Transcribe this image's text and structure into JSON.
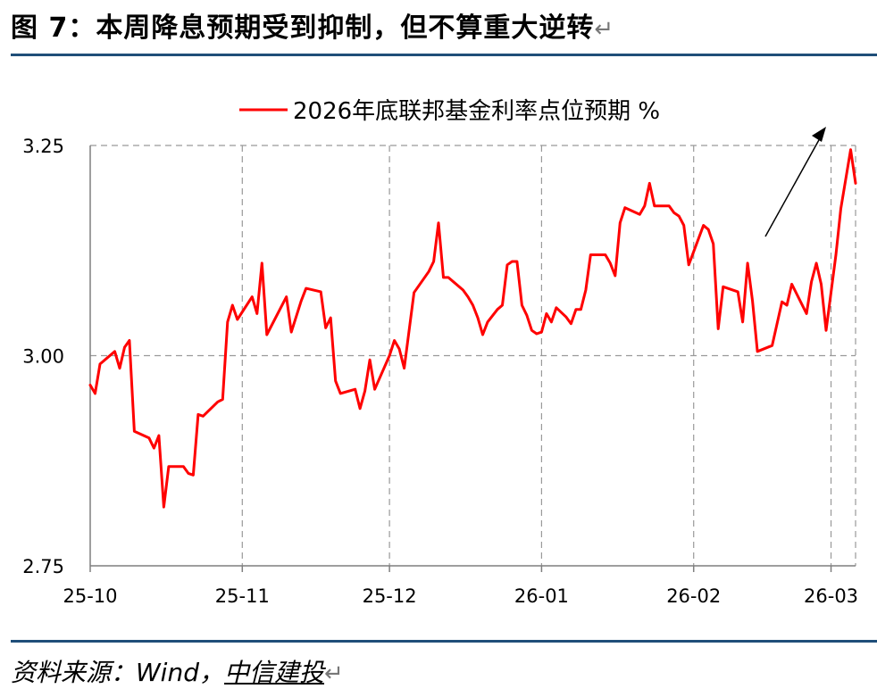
{
  "header": {
    "title": "图 7：本周降息预期受到抑制，但不算重大逆转",
    "title_return_mark": "↵"
  },
  "footer": {
    "source_prefix": "资料来源：Wind，",
    "source_brand": "中信建投",
    "source_return_mark": "↵"
  },
  "colors": {
    "series": "#ff0000",
    "rule": "#1f4e79",
    "grid": "#999999",
    "arrow": "#000000"
  },
  "chart_data": {
    "type": "line",
    "title": "",
    "xlabel": "",
    "ylabel": "",
    "grid": true,
    "legend_position": "top",
    "ylim": [
      2.75,
      3.25
    ],
    "yticks": [
      2.75,
      3.0,
      3.25
    ],
    "ytick_labels": [
      "2.75",
      "3.00",
      "3.25"
    ],
    "xlim": [
      "2025-10-01",
      "2026-03-06"
    ],
    "xticks": [
      "2025-10-01",
      "2025-11-01",
      "2025-12-01",
      "2026-01-01",
      "2026-02-01",
      "2026-03-01"
    ],
    "xtick_labels": [
      "25-10",
      "25-11",
      "25-12",
      "26-01",
      "26-02",
      "26-03"
    ],
    "annotation": "arrow-upward",
    "series": [
      {
        "name": "2026年底联邦基金利率点位预期 %",
        "color": "#ff0000",
        "points": [
          [
            "2025-10-01",
            2.965
          ],
          [
            "2025-10-02",
            2.955
          ],
          [
            "2025-10-03",
            2.99
          ],
          [
            "2025-10-06",
            3.005
          ],
          [
            "2025-10-07",
            2.985
          ],
          [
            "2025-10-08",
            3.01
          ],
          [
            "2025-10-09",
            3.018
          ],
          [
            "2025-10-10",
            2.91
          ],
          [
            "2025-10-13",
            2.902
          ],
          [
            "2025-10-14",
            2.89
          ],
          [
            "2025-10-15",
            2.905
          ],
          [
            "2025-10-16",
            2.82
          ],
          [
            "2025-10-17",
            2.868
          ],
          [
            "2025-10-20",
            2.868
          ],
          [
            "2025-10-21",
            2.86
          ],
          [
            "2025-10-22",
            2.858
          ],
          [
            "2025-10-23",
            2.93
          ],
          [
            "2025-10-24",
            2.928
          ],
          [
            "2025-10-27",
            2.945
          ],
          [
            "2025-10-28",
            2.948
          ],
          [
            "2025-10-29",
            3.04
          ],
          [
            "2025-10-30",
            3.06
          ],
          [
            "2025-10-31",
            3.043
          ],
          [
            "2025-11-03",
            3.07
          ],
          [
            "2025-11-04",
            3.05
          ],
          [
            "2025-11-05",
            3.11
          ],
          [
            "2025-11-06",
            3.025
          ],
          [
            "2025-11-10",
            3.07
          ],
          [
            "2025-11-11",
            3.028
          ],
          [
            "2025-11-13",
            3.065
          ],
          [
            "2025-11-14",
            3.08
          ],
          [
            "2025-11-17",
            3.076
          ],
          [
            "2025-11-18",
            3.033
          ],
          [
            "2025-11-19",
            3.045
          ],
          [
            "2025-11-20",
            2.97
          ],
          [
            "2025-11-21",
            2.955
          ],
          [
            "2025-11-24",
            2.96
          ],
          [
            "2025-11-25",
            2.937
          ],
          [
            "2025-11-26",
            2.958
          ],
          [
            "2025-11-27",
            2.995
          ],
          [
            "2025-11-28",
            2.96
          ],
          [
            "2025-12-01",
            3.0
          ],
          [
            "2025-12-02",
            3.018
          ],
          [
            "2025-12-03",
            3.008
          ],
          [
            "2025-12-04",
            2.985
          ],
          [
            "2025-12-05",
            3.03
          ],
          [
            "2025-12-06",
            3.075
          ],
          [
            "2025-12-09",
            3.1
          ],
          [
            "2025-12-10",
            3.112
          ],
          [
            "2025-12-11",
            3.158
          ],
          [
            "2025-12-12",
            3.093
          ],
          [
            "2025-12-13",
            3.093
          ],
          [
            "2025-12-16",
            3.078
          ],
          [
            "2025-12-17",
            3.07
          ],
          [
            "2025-12-18",
            3.06
          ],
          [
            "2025-12-19",
            3.045
          ],
          [
            "2025-12-20",
            3.025
          ],
          [
            "2025-12-21",
            3.04
          ],
          [
            "2025-12-23",
            3.055
          ],
          [
            "2025-12-24",
            3.06
          ],
          [
            "2025-12-25",
            3.108
          ],
          [
            "2025-12-26",
            3.112
          ],
          [
            "2025-12-27",
            3.112
          ],
          [
            "2025-12-28",
            3.06
          ],
          [
            "2025-12-29",
            3.048
          ],
          [
            "2025-12-30",
            3.03
          ],
          [
            "2025-12-31",
            3.026
          ],
          [
            "2026-01-01",
            3.028
          ],
          [
            "2026-01-02",
            3.05
          ],
          [
            "2026-01-03",
            3.04
          ],
          [
            "2026-01-04",
            3.057
          ],
          [
            "2026-01-06",
            3.046
          ],
          [
            "2026-01-07",
            3.038
          ],
          [
            "2026-01-08",
            3.055
          ],
          [
            "2026-01-09",
            3.055
          ],
          [
            "2026-01-10",
            3.078
          ],
          [
            "2026-01-11",
            3.12
          ],
          [
            "2026-01-14",
            3.12
          ],
          [
            "2026-01-15",
            3.11
          ],
          [
            "2026-01-16",
            3.095
          ],
          [
            "2026-01-17",
            3.158
          ],
          [
            "2026-01-18",
            3.176
          ],
          [
            "2026-01-21",
            3.168
          ],
          [
            "2026-01-22",
            3.178
          ],
          [
            "2026-01-23",
            3.205
          ],
          [
            "2026-01-24",
            3.178
          ],
          [
            "2026-01-27",
            3.178
          ],
          [
            "2026-01-28",
            3.17
          ],
          [
            "2026-01-29",
            3.166
          ],
          [
            "2026-01-30",
            3.155
          ],
          [
            "2026-01-31",
            3.108
          ],
          [
            "2026-02-03",
            3.155
          ],
          [
            "2026-02-04",
            3.15
          ],
          [
            "2026-02-05",
            3.133
          ],
          [
            "2026-02-06",
            3.032
          ],
          [
            "2026-02-07",
            3.082
          ],
          [
            "2026-02-10",
            3.076
          ],
          [
            "2026-02-11",
            3.04
          ],
          [
            "2026-02-12",
            3.11
          ],
          [
            "2026-02-13",
            3.065
          ],
          [
            "2026-02-14",
            3.005
          ],
          [
            "2026-02-17",
            3.012
          ],
          [
            "2026-02-18",
            3.038
          ],
          [
            "2026-02-19",
            3.064
          ],
          [
            "2026-02-20",
            3.06
          ],
          [
            "2026-02-21",
            3.085
          ],
          [
            "2026-02-24",
            3.05
          ],
          [
            "2026-02-25",
            3.088
          ],
          [
            "2026-02-26",
            3.11
          ],
          [
            "2026-02-27",
            3.085
          ],
          [
            "2026-02-28",
            3.03
          ],
          [
            "2026-03-02",
            3.12
          ],
          [
            "2026-03-03",
            3.175
          ],
          [
            "2026-03-04",
            3.21
          ],
          [
            "2026-03-05",
            3.245
          ],
          [
            "2026-03-06",
            3.205
          ]
        ]
      }
    ]
  }
}
